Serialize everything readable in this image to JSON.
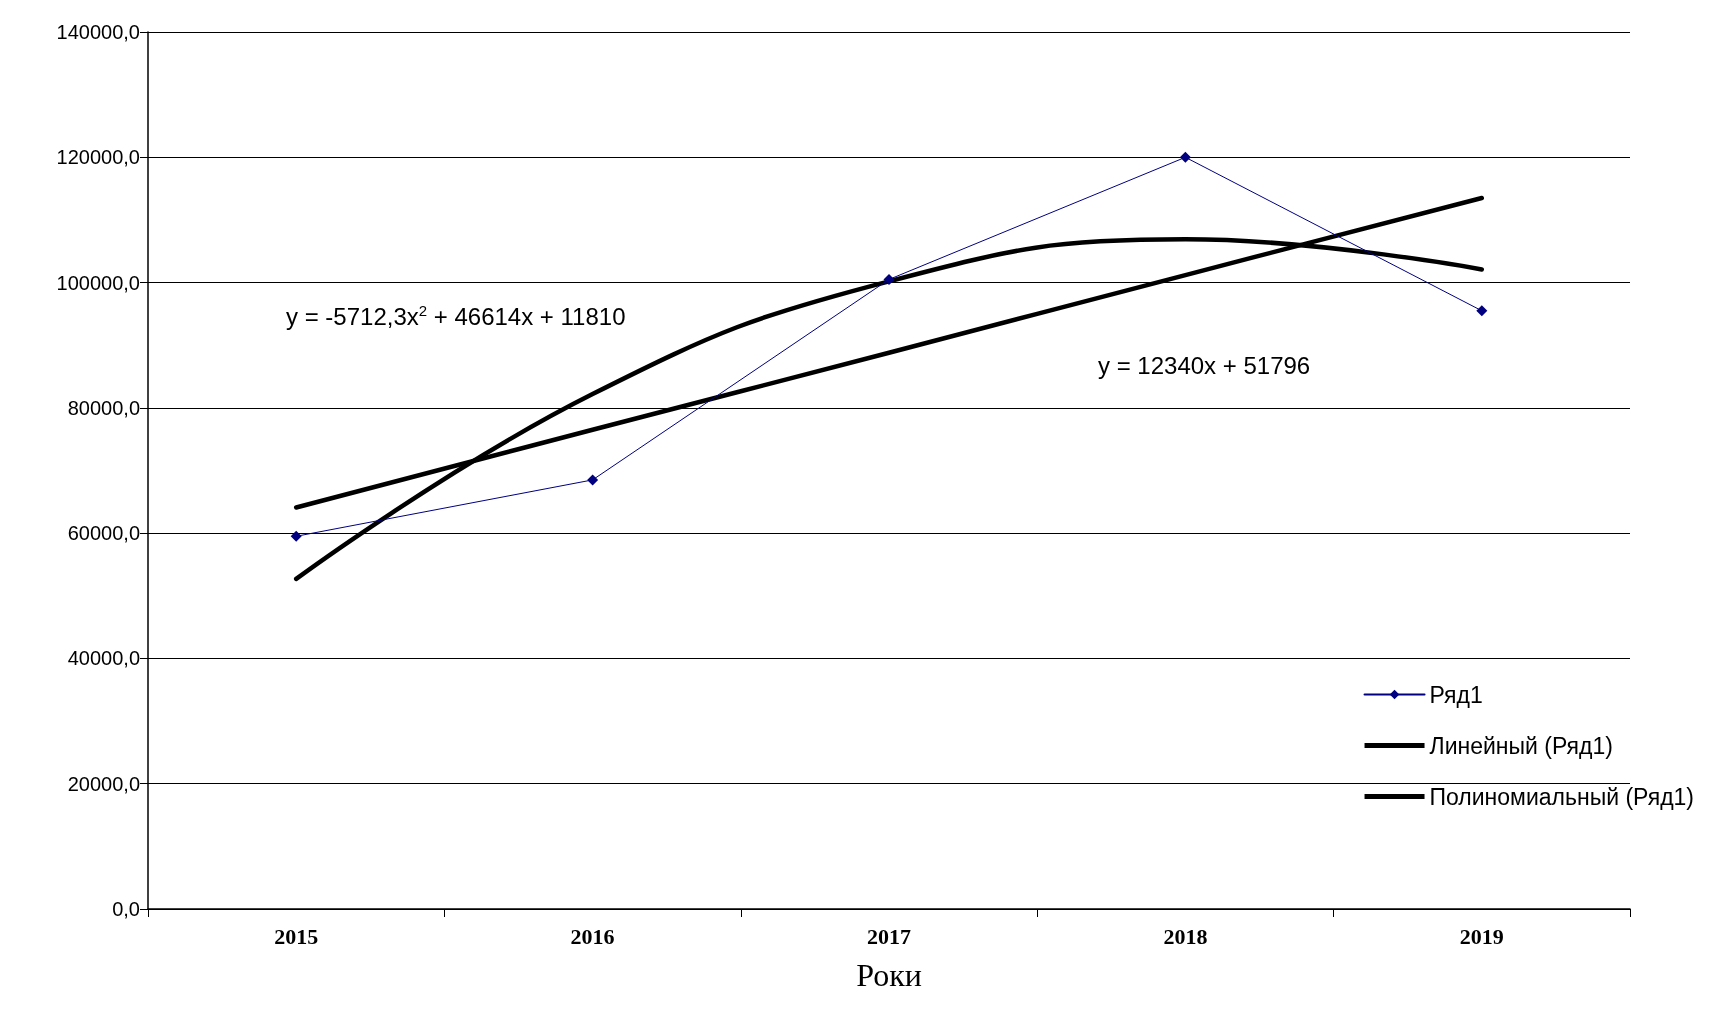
{
  "chart_data": {
    "type": "line",
    "xlabel": "Роки",
    "categories": [
      "2015",
      "2016",
      "2017",
      "2018",
      "2019"
    ],
    "series": [
      {
        "name": "Ряд1",
        "color": "#000080",
        "values": [
          59500,
          68500,
          100500,
          120000,
          95500
        ],
        "marker": "diamond"
      },
      {
        "name": "Линейный (Ряд1)",
        "color": "#000000",
        "values": [
          64100,
          76500,
          88800,
          101200,
          113500
        ],
        "marker": "none"
      },
      {
        "name": "Полиномиальный (Ряд1)",
        "color": "#000000",
        "values": [
          52700,
          82200,
          100200,
          106900,
          102100
        ],
        "marker": "none"
      }
    ],
    "ylim": [
      0,
      140000
    ],
    "yticks": [
      {
        "value": 0,
        "label": "0,0"
      },
      {
        "value": 20000,
        "label": "20000,0"
      },
      {
        "value": 40000,
        "label": "40000,0"
      },
      {
        "value": 60000,
        "label": "60000,0"
      },
      {
        "value": 80000,
        "label": "80000,0"
      },
      {
        "value": 100000,
        "label": "100000,0"
      },
      {
        "value": 120000,
        "label": "120000,0"
      },
      {
        "value": 140000,
        "label": "140000,0"
      }
    ],
    "grid": "y",
    "legend": "bottom right",
    "annotations": [
      "y = -5712,3x$^{2}$ + 46614x + 11810",
      "y = 12340x + 51796"
    ]
  }
}
